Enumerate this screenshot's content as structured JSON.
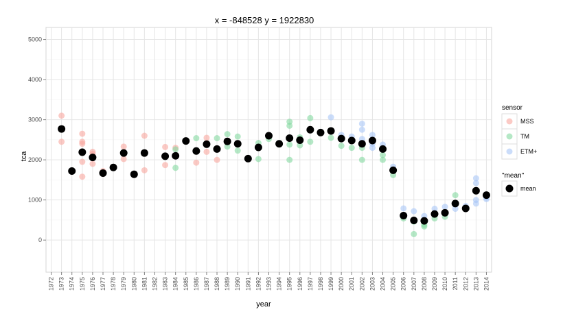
{
  "chart_data": {
    "type": "scatter",
    "title": "x = -848528 y = 1922830",
    "xlabel": "year",
    "ylabel": "tca",
    "xlim": [
      1971.5,
      2014.5
    ],
    "ylim": [
      -800,
      5300
    ],
    "yticks": [
      0,
      1000,
      2000,
      3000,
      4000,
      5000
    ],
    "xticks": [
      1972,
      1973,
      1974,
      1975,
      1976,
      1977,
      1978,
      1979,
      1980,
      1981,
      1982,
      1983,
      1984,
      1985,
      1986,
      1987,
      1988,
      1989,
      1990,
      1991,
      1992,
      1993,
      1994,
      1995,
      1996,
      1997,
      1998,
      1999,
      2000,
      2001,
      2002,
      2003,
      2004,
      2005,
      2006,
      2007,
      2008,
      2009,
      2010,
      2011,
      2012,
      2013,
      2014
    ],
    "grid": true,
    "legend_position": "right",
    "sensor_legend": {
      "title": "sensor",
      "entries": [
        {
          "name": "MSS",
          "color": "#f8a79e"
        },
        {
          "name": "TM",
          "color": "#84d9a0"
        },
        {
          "name": "ETM+",
          "color": "#a8c6f7"
        }
      ]
    },
    "mean_legend": {
      "title": "\"mean\"",
      "entries": [
        {
          "name": "mean",
          "color": "#000000"
        }
      ]
    },
    "series": [
      {
        "name": "MSS",
        "points": [
          [
            1973,
            3100
          ],
          [
            1973,
            2450
          ],
          [
            1975,
            2650
          ],
          [
            1975,
            2450
          ],
          [
            1975,
            2400
          ],
          [
            1975,
            1950
          ],
          [
            1975,
            1580
          ],
          [
            1976,
            2200
          ],
          [
            1976,
            2150
          ],
          [
            1976,
            1900
          ],
          [
            1977,
            1720
          ],
          [
            1977,
            1650
          ],
          [
            1979,
            2330
          ],
          [
            1979,
            2020
          ],
          [
            1981,
            2600
          ],
          [
            1981,
            1740
          ],
          [
            1983,
            2320
          ],
          [
            1983,
            1870
          ],
          [
            1984,
            2300
          ],
          [
            1986,
            1930
          ],
          [
            1987,
            2550
          ],
          [
            1987,
            2200
          ],
          [
            1988,
            2000
          ]
        ]
      },
      {
        "name": "TM",
        "points": [
          [
            1984,
            2260
          ],
          [
            1984,
            1800
          ],
          [
            1986,
            2540
          ],
          [
            1988,
            2540
          ],
          [
            1989,
            2640
          ],
          [
            1989,
            2330
          ],
          [
            1990,
            2580
          ],
          [
            1990,
            2230
          ],
          [
            1992,
            2420
          ],
          [
            1992,
            2020
          ],
          [
            1993,
            2520
          ],
          [
            1995,
            2950
          ],
          [
            1995,
            2850
          ],
          [
            1995,
            2380
          ],
          [
            1995,
            2000
          ],
          [
            1996,
            2560
          ],
          [
            1996,
            2360
          ],
          [
            1997,
            3040
          ],
          [
            1997,
            2450
          ],
          [
            1999,
            2550
          ],
          [
            2000,
            2350
          ],
          [
            2001,
            2300
          ],
          [
            2002,
            2300
          ],
          [
            2002,
            2000
          ],
          [
            2004,
            2120
          ],
          [
            2004,
            2000
          ],
          [
            2005,
            1620
          ],
          [
            2006,
            540
          ],
          [
            2007,
            460
          ],
          [
            2007,
            150
          ],
          [
            2008,
            380
          ],
          [
            2008,
            340
          ],
          [
            2009,
            540
          ],
          [
            2010,
            580
          ],
          [
            2011,
            1120
          ],
          [
            2012,
            780
          ]
        ]
      },
      {
        "name": "ETM+",
        "points": [
          [
            1999,
            3060
          ],
          [
            2000,
            2620
          ],
          [
            2000,
            2550
          ],
          [
            2001,
            2580
          ],
          [
            2002,
            2900
          ],
          [
            2002,
            2750
          ],
          [
            2002,
            2520
          ],
          [
            2003,
            2620
          ],
          [
            2003,
            2400
          ],
          [
            2003,
            2300
          ],
          [
            2004,
            2380
          ],
          [
            2005,
            1830
          ],
          [
            2006,
            790
          ],
          [
            2007,
            720
          ],
          [
            2008,
            600
          ],
          [
            2009,
            780
          ],
          [
            2010,
            830
          ],
          [
            2011,
            780
          ],
          [
            2012,
            850
          ],
          [
            2013,
            1540
          ],
          [
            2013,
            1420
          ],
          [
            2013,
            1000
          ],
          [
            2013,
            910
          ],
          [
            2014,
            1060
          ],
          [
            2014,
            1020
          ]
        ]
      }
    ],
    "mean": {
      "name": "mean",
      "points": [
        [
          1973,
          2770
        ],
        [
          1974,
          1720
        ],
        [
          1975,
          2190
        ],
        [
          1976,
          2060
        ],
        [
          1977,
          1670
        ],
        [
          1978,
          1810
        ],
        [
          1979,
          2170
        ],
        [
          1980,
          1640
        ],
        [
          1981,
          2170
        ],
        [
          1983,
          2090
        ],
        [
          1984,
          2100
        ],
        [
          1985,
          2470
        ],
        [
          1986,
          2220
        ],
        [
          1987,
          2390
        ],
        [
          1988,
          2270
        ],
        [
          1989,
          2460
        ],
        [
          1990,
          2400
        ],
        [
          1991,
          2030
        ],
        [
          1992,
          2310
        ],
        [
          1993,
          2600
        ],
        [
          1994,
          2400
        ],
        [
          1995,
          2540
        ],
        [
          1996,
          2490
        ],
        [
          1997,
          2750
        ],
        [
          1998,
          2680
        ],
        [
          1999,
          2720
        ],
        [
          2000,
          2530
        ],
        [
          2001,
          2480
        ],
        [
          2002,
          2400
        ],
        [
          2003,
          2480
        ],
        [
          2004,
          2270
        ],
        [
          2005,
          1740
        ],
        [
          2006,
          610
        ],
        [
          2007,
          490
        ],
        [
          2008,
          480
        ],
        [
          2009,
          650
        ],
        [
          2010,
          680
        ],
        [
          2011,
          910
        ],
        [
          2012,
          790
        ],
        [
          2013,
          1230
        ],
        [
          2014,
          1120
        ]
      ]
    }
  }
}
